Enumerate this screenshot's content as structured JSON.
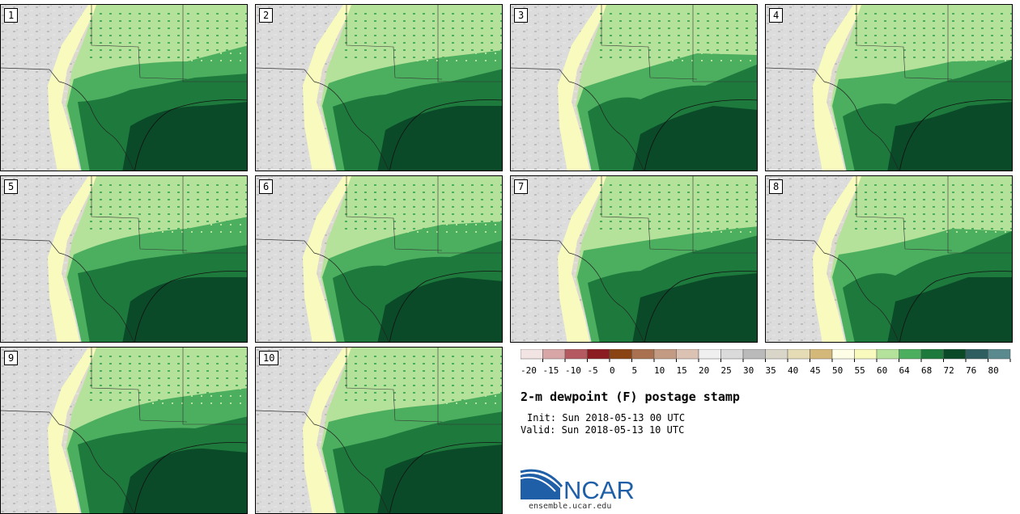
{
  "figure": {
    "title": "2-m dewpoint (F) postage stamp",
    "init": "Init: Sun 2018-05-13 00 UTC",
    "valid": "Valid: Sun 2018-05-13 10 UTC"
  },
  "members": [
    "1",
    "2",
    "3",
    "4",
    "5",
    "6",
    "7",
    "8",
    "9",
    "10"
  ],
  "colorbar": {
    "ticks": [
      "-20",
      "-15",
      "-10",
      "-5",
      "0",
      "5",
      "10",
      "15",
      "20",
      "25",
      "30",
      "35",
      "40",
      "45",
      "50",
      "55",
      "60",
      "64",
      "68",
      "72",
      "76",
      "80"
    ],
    "colors": [
      "#f3e4e4",
      "#d9a6a8",
      "#b3595f",
      "#8a1c22",
      "#8a4414",
      "#a97150",
      "#c39a82",
      "#dcc2b3",
      "#efefef",
      "#dadada",
      "#bababa",
      "#d9d6c9",
      "#e5dcb6",
      "#d3b87a",
      "#fefee6",
      "#f8fbbd",
      "#b5e29a",
      "#4caf5f",
      "#1e7a3c",
      "#0a4a28",
      "#2e5e60",
      "#5b8a8e"
    ]
  },
  "logo": {
    "text": "NCAR",
    "url_text": "ensemble.ucar.edu"
  },
  "colors": {
    "background": "#ffffff",
    "ncar_blue": "#1f5fa8"
  }
}
